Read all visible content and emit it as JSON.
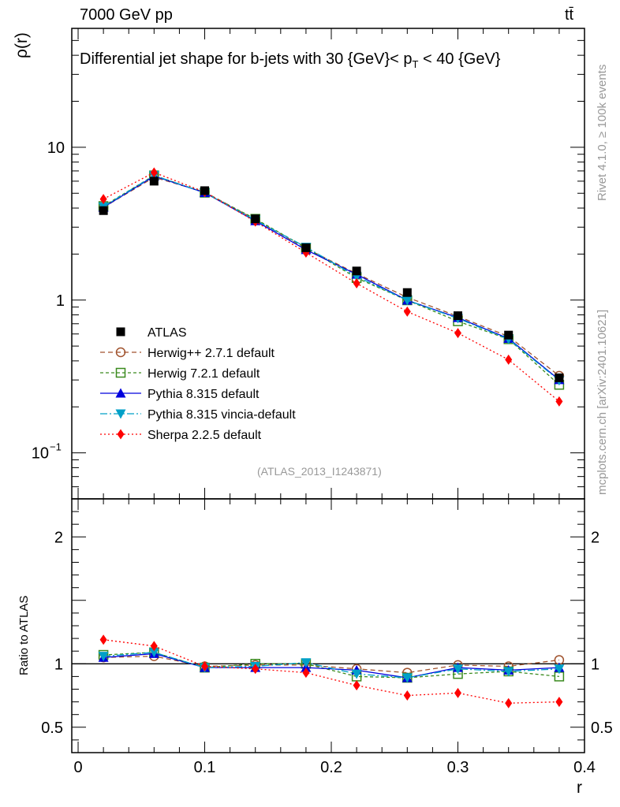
{
  "header": {
    "left": "7000 GeV pp",
    "right": "tt̄"
  },
  "side": {
    "rivet": "Rivet 4.1.0, ≥ 100k events",
    "mcplots": "mcplots.cern.ch [arXiv:2401.10621]"
  },
  "chart_data": {
    "type": "line",
    "title_pre": "Differential jet shape for b-jets with 30 {GeV}< p",
    "title_sub": "T",
    "title_post": " < 40 {GeV}",
    "ylabel": "ρ(r)",
    "ratio_ylabel": "Ratio to ATLAS",
    "xlabel": "r",
    "analysis_id": "(ATLAS_2013_I1243871)",
    "xlim": [
      -0.005,
      0.4
    ],
    "ylim": [
      0.05,
      60
    ],
    "ratio_ylim": [
      0.3,
      2.3
    ],
    "yscale": "log",
    "x_ticks": [
      "0",
      "0.1",
      "0.2",
      "0.3",
      "0.4"
    ],
    "y_ticks": [
      "10",
      "1"
    ],
    "y_tick_minor_label": "10",
    "y_tick_minor_exp": "−1",
    "ratio_ticks": [
      "2",
      "1",
      "0.5"
    ],
    "x": [
      0.02,
      0.06,
      0.1,
      0.14,
      0.18,
      0.22,
      0.26,
      0.3,
      0.34,
      0.38
    ],
    "data": {
      "name": "ATLAS",
      "values": [
        3.85,
        6.0,
        5.2,
        3.4,
        2.2,
        1.55,
        1.12,
        0.79,
        0.59,
        0.31
      ]
    },
    "series": [
      {
        "name": "Herwig++ 2.7.1 default",
        "color": "#a0522d",
        "marker": "circle-open",
        "dash": "6,4",
        "ratio": [
          1.05,
          1.06,
          0.98,
          0.99,
          0.99,
          0.96,
          0.93,
          0.99,
          0.98,
          1.03
        ]
      },
      {
        "name": "Herwig 7.2.1 default",
        "color": "#3a8a1e",
        "marker": "square-open",
        "dash": "4,3",
        "ratio": [
          1.07,
          1.09,
          0.97,
          1.0,
          1.0,
          0.9,
          0.89,
          0.92,
          0.94,
          0.9
        ]
      },
      {
        "name": "Pythia 8.315 default",
        "color": "#0000dd",
        "marker": "triangle-up",
        "dash": "",
        "ratio": [
          1.05,
          1.08,
          0.97,
          0.97,
          0.97,
          0.95,
          0.89,
          0.97,
          0.95,
          0.97
        ]
      },
      {
        "name": "Pythia 8.315 vincia-default",
        "color": "#00a0c8",
        "marker": "triangle-down",
        "dash": "9,3,2,3",
        "ratio": [
          1.06,
          1.09,
          0.97,
          0.98,
          1.01,
          0.92,
          0.89,
          0.96,
          0.94,
          0.96
        ]
      },
      {
        "name": "Sherpa 2.2.5 default",
        "color": "#ff0000",
        "marker": "diamond",
        "dash": "2,3",
        "ratio": [
          1.19,
          1.14,
          0.98,
          0.96,
          0.93,
          0.83,
          0.75,
          0.77,
          0.69,
          0.7
        ]
      }
    ]
  }
}
